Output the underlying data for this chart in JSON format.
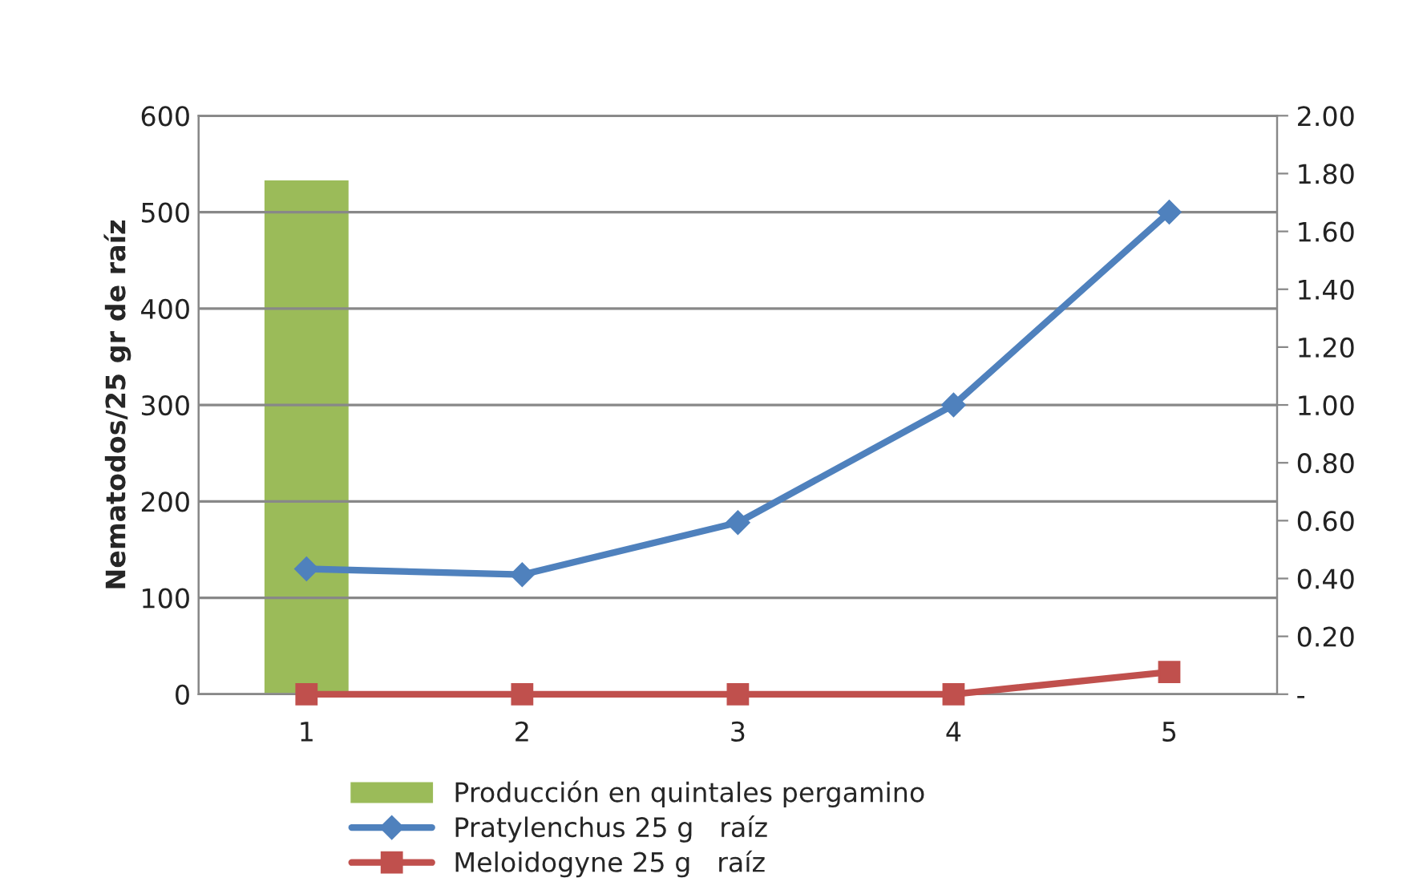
{
  "chart_data": {
    "type": "line",
    "categories": [
      "1",
      "2",
      "3",
      "4",
      "5"
    ],
    "ylabel": "Nematodos/25 gr de raíz",
    "series": [
      {
        "name": "Producción en quintales pergamino",
        "type": "bar",
        "axis": "y2",
        "color": "#9bbb59",
        "values": [
          1.78,
          null,
          null,
          null,
          null
        ]
      },
      {
        "name": "Pratylenchus 25 g   raíz",
        "color": "#4f81bd",
        "marker": "diamond",
        "values": [
          130,
          124,
          178,
          300,
          500
        ]
      },
      {
        "name": "Meloidogyne 25 g   raíz",
        "color": "#c0504d",
        "marker": "square",
        "values": [
          0,
          0,
          0,
          0,
          23
        ]
      }
    ],
    "ylim": [
      0,
      600
    ],
    "yticks": [
      0,
      100,
      200,
      300,
      400,
      500,
      600
    ],
    "y2lim": [
      0,
      2.0
    ],
    "y2ticks": [
      {
        "value": 0,
        "label": "-"
      },
      {
        "value": 0.2,
        "label": "0.20"
      },
      {
        "value": 0.4,
        "label": "0.40"
      },
      {
        "value": 0.6,
        "label": "0.60"
      },
      {
        "value": 0.8,
        "label": "0.80"
      },
      {
        "value": 1.0,
        "label": "1.00"
      },
      {
        "value": 1.2,
        "label": "1.20"
      },
      {
        "value": 1.4,
        "label": "1.40"
      },
      {
        "value": 1.6,
        "label": "1.60"
      },
      {
        "value": 1.8,
        "label": "1.80"
      },
      {
        "value": 2.0,
        "label": "2.00"
      }
    ],
    "grid": "y",
    "legend": "bottom"
  }
}
